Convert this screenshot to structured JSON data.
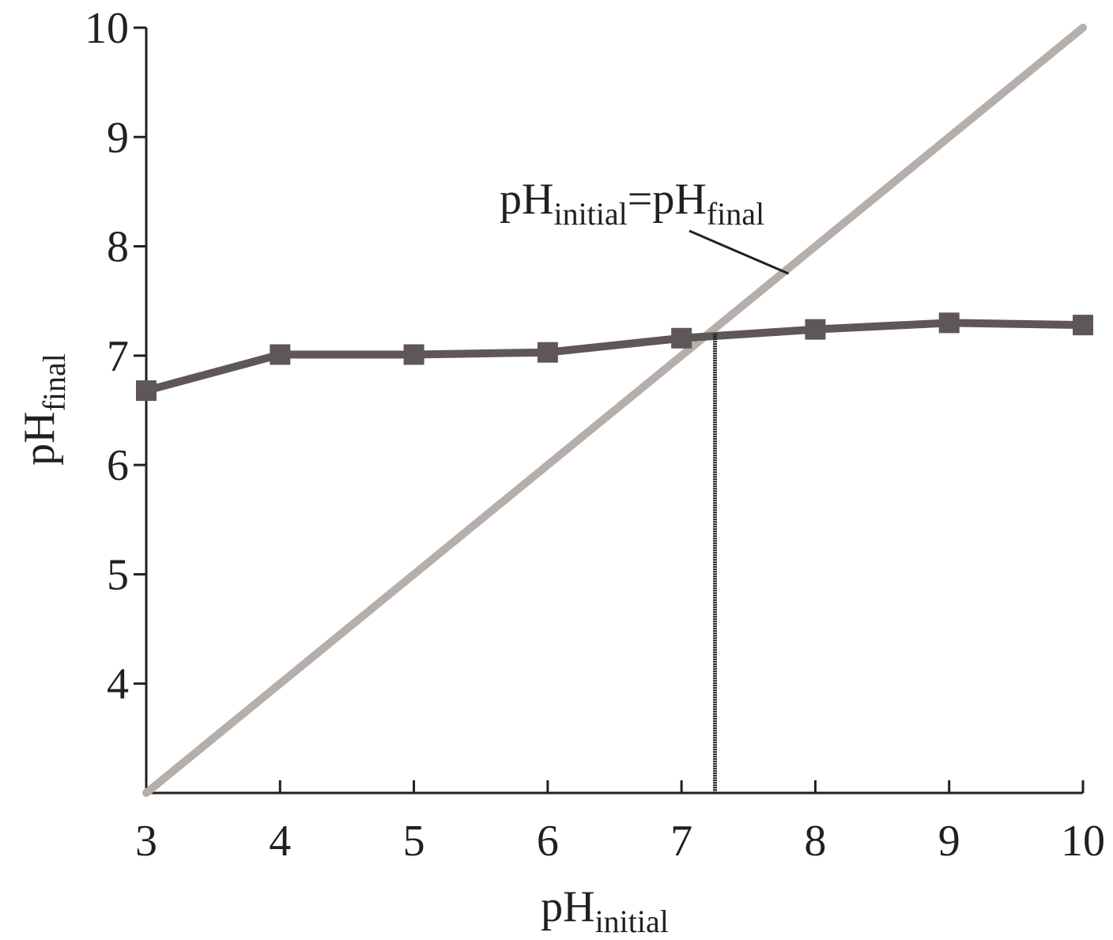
{
  "chart_data": {
    "type": "line",
    "xlabel": {
      "main": "pH",
      "sub": "initial"
    },
    "ylabel": {
      "main": "pH",
      "sub": "final"
    },
    "xlim": [
      3,
      10
    ],
    "ylim": [
      3,
      10
    ],
    "x_ticks": [
      3,
      4,
      5,
      6,
      7,
      8,
      9,
      10
    ],
    "y_ticks": [
      4,
      5,
      6,
      7,
      8,
      9,
      10
    ],
    "grid": false,
    "legend": null,
    "series": [
      {
        "x": [
          3,
          4,
          5,
          6,
          7,
          8,
          9,
          10
        ],
        "y": [
          6.68,
          7.01,
          7.01,
          7.03,
          7.16,
          7.24,
          7.3,
          7.28
        ],
        "color": "#5f5757",
        "marker": "square"
      },
      {
        "x": [
          3,
          10
        ],
        "y": [
          3,
          10
        ],
        "color": "#b5aeab",
        "marker": "none"
      }
    ],
    "reference_line": {
      "x": 7.25,
      "y_from": 3,
      "y_to": 7.2,
      "color": "#231f20"
    },
    "annotation": {
      "parts": [
        {
          "text": "pH",
          "sub": false
        },
        {
          "text": "initial",
          "sub": true
        },
        {
          "text": "=pH",
          "sub": false
        },
        {
          "text": "final",
          "sub": true
        }
      ],
      "points_to": {
        "x": 7.8,
        "y": 7.75
      }
    }
  }
}
